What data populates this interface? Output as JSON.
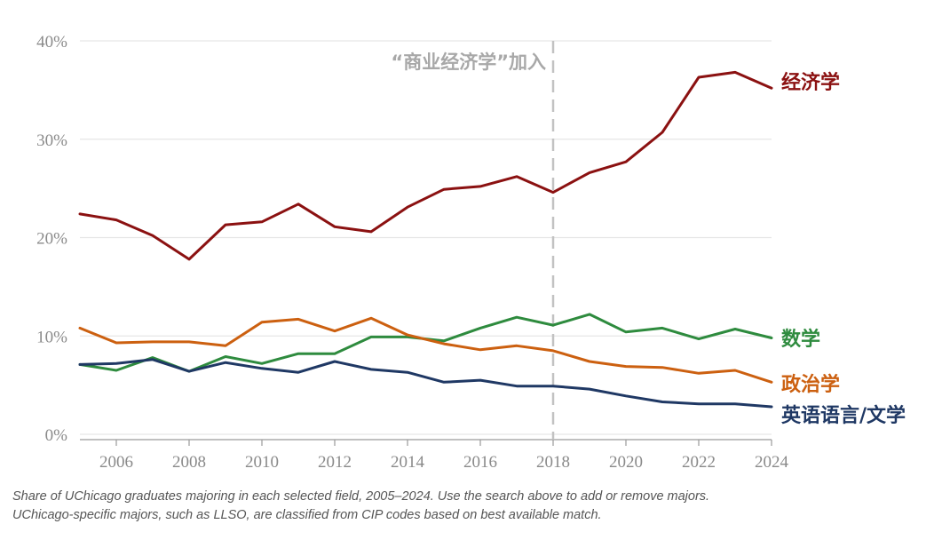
{
  "chart_data": {
    "type": "line",
    "x": [
      2005,
      2006,
      2007,
      2008,
      2009,
      2010,
      2011,
      2012,
      2013,
      2014,
      2015,
      2016,
      2017,
      2018,
      2019,
      2020,
      2021,
      2022,
      2023,
      2024
    ],
    "xlim": [
      2005,
      2024
    ],
    "ylim": [
      0,
      40
    ],
    "x_tick_labels": [
      "2006",
      "2008",
      "2010",
      "2012",
      "2014",
      "2016",
      "2018",
      "2020",
      "2022",
      "2024"
    ],
    "y_tick_labels": [
      "0%",
      "10%",
      "20%",
      "30%",
      "40%"
    ],
    "grid": "horizontal",
    "series": [
      {
        "name": "经济学",
        "color": "#8b1111",
        "values": [
          22.4,
          21.8,
          20.2,
          17.8,
          21.3,
          21.6,
          23.4,
          21.1,
          20.6,
          23.1,
          24.9,
          25.2,
          26.2,
          24.6,
          26.6,
          27.7,
          30.7,
          36.3,
          36.8,
          35.2
        ]
      },
      {
        "name": "数学",
        "color": "#2e8b3e",
        "values": [
          7.1,
          6.5,
          7.8,
          6.4,
          7.9,
          7.2,
          8.2,
          8.2,
          9.9,
          9.9,
          9.5,
          10.8,
          11.9,
          11.1,
          12.2,
          10.4,
          10.8,
          9.7,
          10.7,
          9.8
        ]
      },
      {
        "name": "政治学",
        "color": "#cc6010",
        "values": [
          10.8,
          9.3,
          9.4,
          9.4,
          9.0,
          11.4,
          11.7,
          10.5,
          11.8,
          10.1,
          9.2,
          8.6,
          9.0,
          8.5,
          7.4,
          6.9,
          6.8,
          6.2,
          6.5,
          5.3
        ]
      },
      {
        "name": "英语语言/文学",
        "color": "#1f3864",
        "values": [
          7.1,
          7.2,
          7.6,
          6.4,
          7.3,
          6.7,
          6.3,
          7.4,
          6.6,
          6.3,
          5.3,
          5.5,
          4.9,
          4.9,
          4.6,
          3.9,
          3.3,
          3.1,
          3.1,
          2.8
        ]
      }
    ],
    "annotation": {
      "text": "“商业经济学”加入",
      "x": 2018
    },
    "caption": [
      "Share of UChicago graduates majoring in each selected field, 2005–2024. Use the search above to add or remove majors.",
      "UChicago-specific majors, such as LLSO, are classified from CIP codes based on best available match."
    ]
  }
}
